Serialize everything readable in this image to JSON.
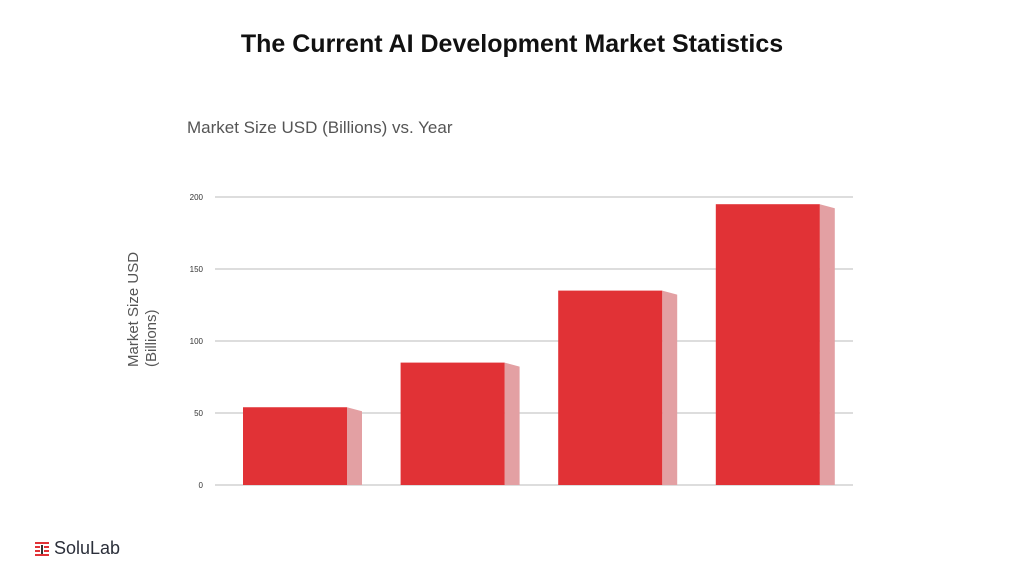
{
  "title": "The Current AI Development Market Statistics",
  "chart_data": {
    "type": "bar",
    "title": "Market Size USD (Billions) vs. Year",
    "xlabel": "",
    "ylabel": "Market Size USD (Billions)",
    "ylabel_lines": [
      "Market Size USD",
      "(Billions)"
    ],
    "categories": [
      "",
      "",
      "",
      ""
    ],
    "values": [
      54,
      85,
      135,
      195
    ],
    "ylim": [
      0,
      200
    ],
    "yticks": [
      "0",
      "50",
      "100",
      "150",
      "200"
    ],
    "grid": true,
    "bar_color": "#e13236",
    "bar_side_color": "#e3a0a3",
    "style": "3d-shaded"
  },
  "logo": {
    "text": "SoluLab",
    "color": "#e13236"
  }
}
